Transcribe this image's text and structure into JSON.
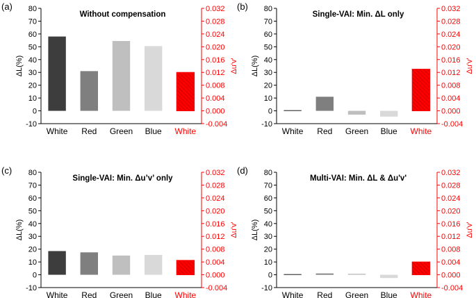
{
  "colors": {
    "white_bar": "#3d3d3d",
    "red_bar": "#7f7f7f",
    "green_bar": "#bfbfbf",
    "blue_bar": "#d9d9d9",
    "duv_bar": "#ff0000",
    "right_axis": "#ff0000"
  },
  "chart_data": [
    {
      "type": "bar",
      "panel": "(a)",
      "title": "Without compensation",
      "categories": [
        "White",
        "Red",
        "Green",
        "Blue",
        "White"
      ],
      "ylabel": "ΔL(%)",
      "y2label": "Δu'v'",
      "ylim": [
        -10,
        80
      ],
      "y2lim": [
        -0.004,
        0.032
      ],
      "yticks": [
        "-10",
        "0",
        "10",
        "20",
        "30",
        "40",
        "50",
        "60",
        "70",
        "80"
      ],
      "y2ticks": [
        "-0.004",
        "0.000",
        "0.004",
        "0.008",
        "0.012",
        "0.016",
        "0.020",
        "0.024",
        "0.028",
        "0.032"
      ],
      "series": [
        {
          "name": "ΔL",
          "axis": "left",
          "values": [
            58,
            31,
            54.5,
            50.5,
            null
          ]
        },
        {
          "name": "Δu'v'",
          "axis": "right",
          "values": [
            null,
            null,
            null,
            null,
            0.012
          ]
        }
      ]
    },
    {
      "type": "bar",
      "panel": "(b)",
      "title": "Single-VAI: Min. ΔL only",
      "categories": [
        "White",
        "Red",
        "Green",
        "Blue",
        "White"
      ],
      "ylabel": "ΔL(%)",
      "y2label": "Δu'v'",
      "ylim": [
        -10,
        80
      ],
      "y2lim": [
        -0.004,
        0.032
      ],
      "yticks": [
        "-10",
        "0",
        "10",
        "20",
        "30",
        "40",
        "50",
        "60",
        "70",
        "80"
      ],
      "y2ticks": [
        "-0.004",
        "0.000",
        "0.004",
        "0.008",
        "0.012",
        "0.016",
        "0.020",
        "0.024",
        "0.028",
        "0.032"
      ],
      "series": [
        {
          "name": "ΔL",
          "axis": "left",
          "values": [
            0.5,
            11,
            -3,
            -4.5,
            null
          ]
        },
        {
          "name": "Δu'v'",
          "axis": "right",
          "values": [
            null,
            null,
            null,
            null,
            0.013
          ]
        }
      ]
    },
    {
      "type": "bar",
      "panel": "(c)",
      "title": "Single-VAI: Min. Δu’v’ only",
      "categories": [
        "White",
        "Red",
        "Green",
        "Blue",
        "White"
      ],
      "ylabel": "ΔL(%)",
      "y2label": "Δu'v'",
      "ylim": [
        -10,
        80
      ],
      "y2lim": [
        -0.004,
        0.032
      ],
      "yticks": [
        "-10",
        "0",
        "10",
        "20",
        "30",
        "40",
        "50",
        "60",
        "70",
        "80"
      ],
      "y2ticks": [
        "-0.004",
        "0.000",
        "0.004",
        "0.008",
        "0.012",
        "0.016",
        "0.020",
        "0.024",
        "0.028",
        "0.032"
      ],
      "series": [
        {
          "name": "ΔL",
          "axis": "left",
          "values": [
            18.5,
            17.5,
            15,
            15.5,
            null
          ]
        },
        {
          "name": "Δu'v'",
          "axis": "right",
          "values": [
            null,
            null,
            null,
            null,
            0.0045
          ]
        }
      ]
    },
    {
      "type": "bar",
      "panel": "(d)",
      "title": "Multi-VAI: Min. ΔL & Δu'v'",
      "categories": [
        "White",
        "Red",
        "Green",
        "Blue",
        "White"
      ],
      "ylabel": "ΔL(%)",
      "y2label": "Δu'v'",
      "ylim": [
        -10,
        80
      ],
      "y2lim": [
        -0.004,
        0.032
      ],
      "yticks": [
        "-10",
        "0",
        "10",
        "20",
        "30",
        "40",
        "50",
        "60",
        "70",
        "80"
      ],
      "y2ticks": [
        "-0.004",
        "0.000",
        "0.004",
        "0.008",
        "0.012",
        "0.016",
        "0.020",
        "0.024",
        "0.028",
        "0.032"
      ],
      "series": [
        {
          "name": "ΔL",
          "axis": "left",
          "values": [
            0.5,
            1,
            0.8,
            -2.5,
            null
          ]
        },
        {
          "name": "Δu'v'",
          "axis": "right",
          "values": [
            null,
            null,
            null,
            null,
            0.004
          ]
        }
      ]
    }
  ]
}
